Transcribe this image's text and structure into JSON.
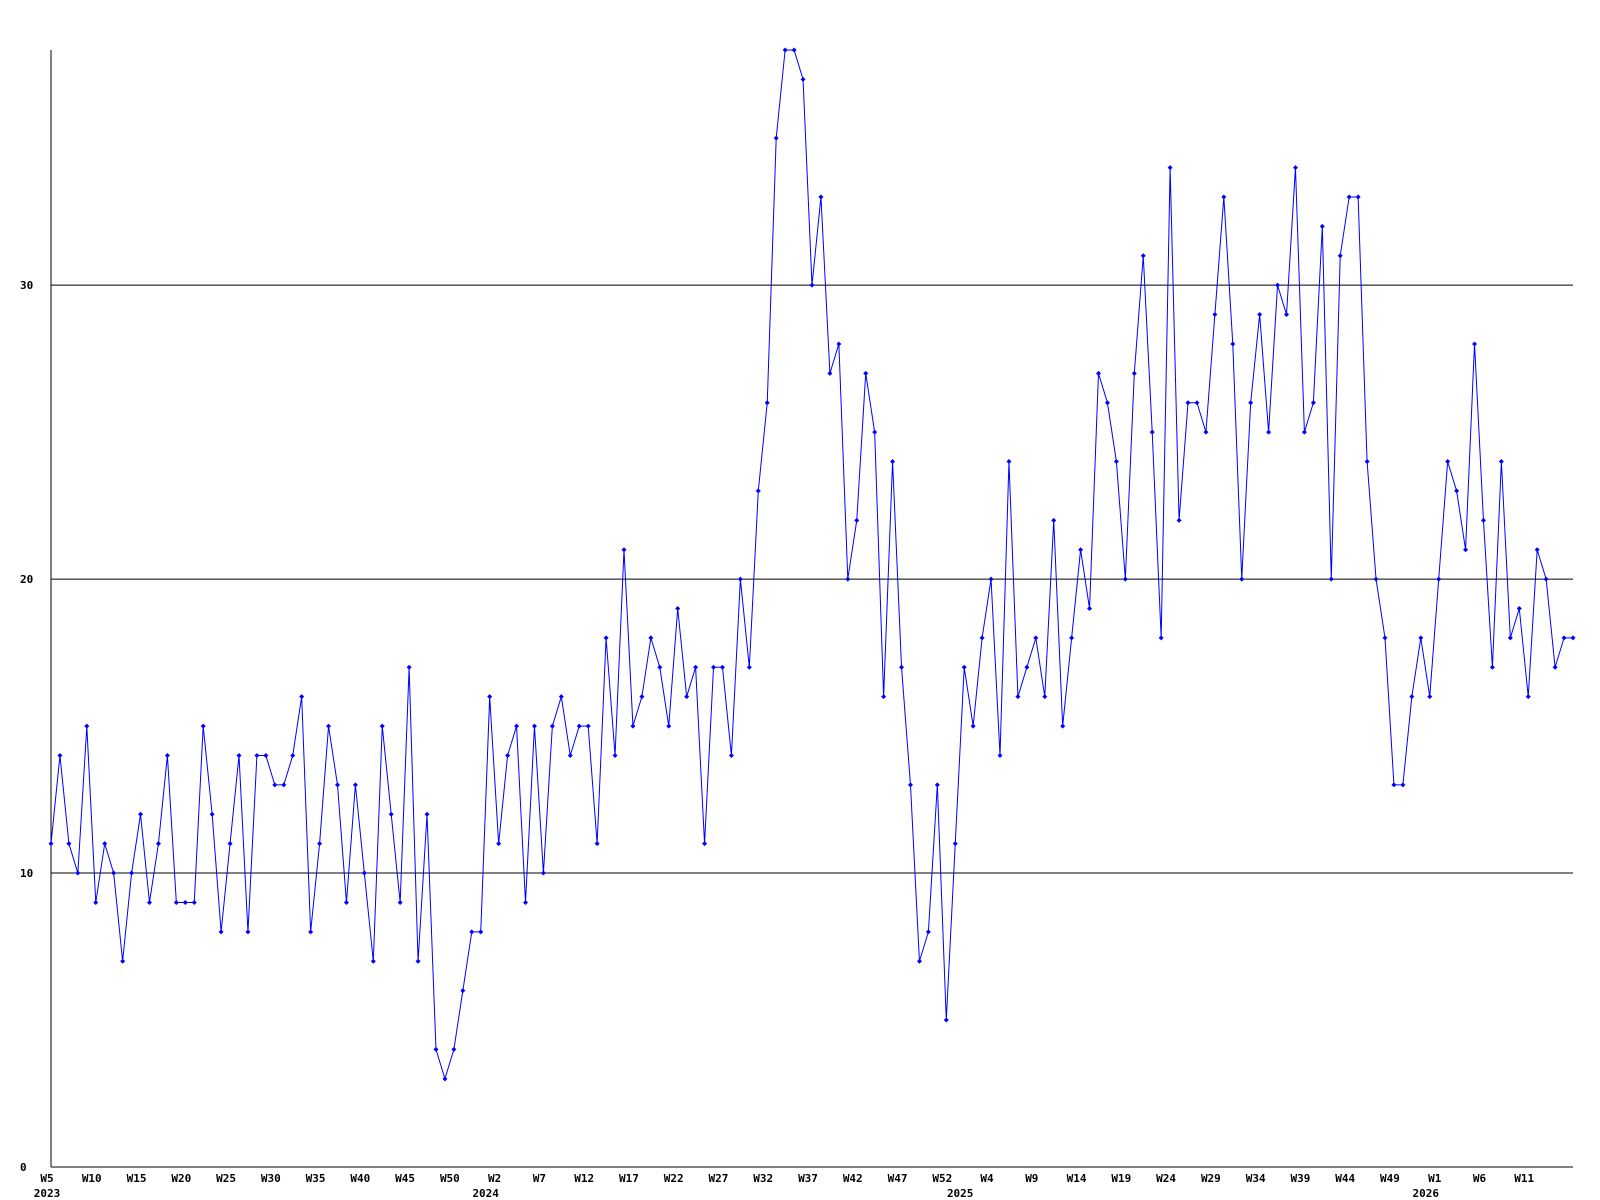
{
  "chart_data": {
    "type": "line",
    "categories": [
      "W5",
      null,
      null,
      null,
      null,
      "W10",
      null,
      null,
      null,
      null,
      "W15",
      null,
      null,
      null,
      null,
      "W20",
      null,
      null,
      null,
      null,
      "W25",
      null,
      null,
      null,
      null,
      "W30",
      null,
      null,
      null,
      null,
      "W35",
      null,
      null,
      null,
      null,
      "W40",
      null,
      null,
      null,
      null,
      "W45",
      null,
      null,
      null,
      null,
      "W50",
      null,
      null,
      null,
      null,
      "W2",
      null,
      null,
      null,
      null,
      "W7",
      null,
      null,
      null,
      null,
      "W12",
      null,
      null,
      null,
      null,
      "W17",
      null,
      null,
      null,
      null,
      "W22",
      null,
      null,
      null,
      null,
      "W27",
      null,
      null,
      null,
      null,
      "W32",
      null,
      null,
      null,
      null,
      "W37",
      null,
      null,
      null,
      null,
      "W42",
      null,
      null,
      null,
      null,
      "W47",
      null,
      null,
      null,
      null,
      "W52",
      null,
      null,
      null,
      null,
      "W4",
      null,
      null,
      null,
      null,
      "W9",
      null,
      null,
      null,
      null,
      "W14",
      null,
      null,
      null,
      null,
      "W19",
      null,
      null,
      null,
      null,
      "W24",
      null,
      null,
      null,
      null,
      "W29",
      null,
      null,
      null,
      null,
      "W34",
      null,
      null,
      null,
      null,
      "W39",
      null,
      null,
      null,
      null,
      "W44",
      null,
      null,
      null,
      null,
      "W49",
      null,
      null,
      null,
      null,
      "W1",
      null,
      null,
      null,
      null,
      "W6",
      null,
      null,
      null,
      null,
      "W11",
      null,
      null,
      null,
      null,
      null
    ],
    "years": [
      "2023",
      null,
      null,
      null,
      null,
      null,
      null,
      null,
      null,
      null,
      null,
      null,
      null,
      null,
      null,
      null,
      null,
      null,
      null,
      null,
      null,
      null,
      null,
      null,
      null,
      null,
      null,
      null,
      null,
      null,
      null,
      null,
      null,
      null,
      null,
      null,
      null,
      null,
      null,
      null,
      null,
      null,
      null,
      null,
      null,
      null,
      null,
      null,
      null,
      "2024",
      null,
      null,
      null,
      null,
      null,
      null,
      null,
      null,
      null,
      null,
      null,
      null,
      null,
      null,
      null,
      null,
      null,
      null,
      null,
      null,
      null,
      null,
      null,
      null,
      null,
      null,
      null,
      null,
      null,
      null,
      null,
      null,
      null,
      null,
      null,
      null,
      null,
      null,
      null,
      null,
      null,
      null,
      null,
      null,
      null,
      null,
      null,
      null,
      null,
      null,
      null,
      null,
      "2025",
      null,
      null,
      null,
      null,
      null,
      null,
      null,
      null,
      null,
      null,
      null,
      null,
      null,
      null,
      null,
      null,
      null,
      null,
      null,
      null,
      null,
      null,
      null,
      null,
      null,
      null,
      null,
      null,
      null,
      null,
      null,
      null,
      null,
      null,
      null,
      null,
      null,
      null,
      null,
      null,
      null,
      null,
      null,
      null,
      null,
      null,
      null,
      null,
      null,
      null,
      null,
      "2026",
      null,
      null,
      null,
      null,
      null,
      null,
      null,
      null,
      null,
      null,
      null,
      null,
      null,
      null,
      null
    ],
    "values": [
      11,
      14,
      11,
      10,
      15,
      9,
      11,
      10,
      7,
      10,
      12,
      9,
      11,
      14,
      9,
      9,
      9,
      15,
      12,
      8,
      11,
      14,
      8,
      14,
      14,
      13,
      13,
      14,
      16,
      8,
      11,
      15,
      13,
      9,
      13,
      10,
      7,
      15,
      12,
      9,
      17,
      7,
      12,
      4,
      3,
      4,
      6,
      8,
      8,
      16,
      11,
      14,
      15,
      9,
      15,
      10,
      15,
      16,
      14,
      15,
      15,
      11,
      18,
      14,
      21,
      15,
      16,
      18,
      17,
      15,
      19,
      16,
      17,
      11,
      17,
      17,
      14,
      20,
      17,
      23,
      26,
      35,
      38,
      38,
      37,
      30,
      33,
      27,
      28,
      20,
      22,
      27,
      25,
      16,
      24,
      17,
      13,
      7,
      8,
      13,
      5,
      11,
      17,
      15,
      18,
      20,
      14,
      24,
      16,
      17,
      18,
      16,
      22,
      15,
      18,
      21,
      19,
      27,
      26,
      24,
      20,
      27,
      31,
      25,
      18,
      34,
      22,
      26,
      26,
      25,
      29,
      33,
      28,
      20,
      26,
      29,
      25,
      30,
      29,
      34,
      25,
      26,
      32,
      20,
      31,
      33,
      33,
      24,
      20,
      18,
      13,
      13,
      16,
      18,
      16,
      20,
      24,
      23,
      21,
      28,
      22,
      17,
      24,
      18,
      19,
      16,
      21,
      20,
      17,
      18,
      18
    ],
    "color": "#0000ff",
    "ylim": [
      0,
      38
    ],
    "yticks": [
      0,
      10,
      20,
      30
    ],
    "grid": true
  }
}
